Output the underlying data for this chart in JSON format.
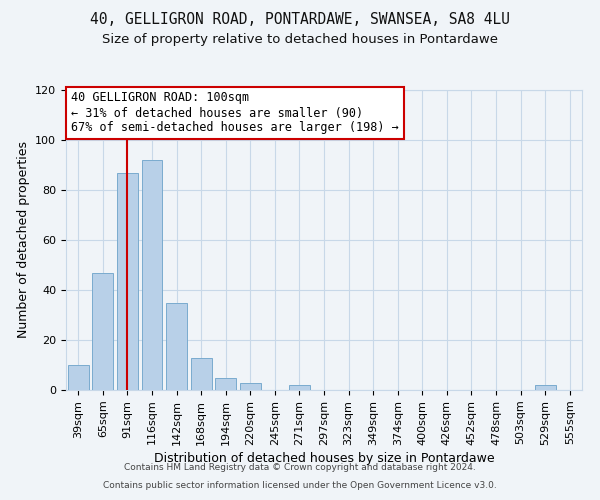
{
  "title1": "40, GELLIGRON ROAD, PONTARDAWE, SWANSEA, SA8 4LU",
  "title2": "Size of property relative to detached houses in Pontardawe",
  "xlabel": "Distribution of detached houses by size in Pontardawe",
  "ylabel": "Number of detached properties",
  "bar_labels": [
    "39sqm",
    "65sqm",
    "91sqm",
    "116sqm",
    "142sqm",
    "168sqm",
    "194sqm",
    "220sqm",
    "245sqm",
    "271sqm",
    "297sqm",
    "323sqm",
    "349sqm",
    "374sqm",
    "400sqm",
    "426sqm",
    "452sqm",
    "478sqm",
    "503sqm",
    "529sqm",
    "555sqm"
  ],
  "bar_heights": [
    10,
    47,
    87,
    92,
    35,
    13,
    5,
    3,
    0,
    2,
    0,
    0,
    0,
    0,
    0,
    0,
    0,
    0,
    0,
    2,
    0
  ],
  "bar_color": "#b8d0e8",
  "bar_edgecolor": "#7aabcf",
  "ylim": [
    0,
    120
  ],
  "yticks": [
    0,
    20,
    40,
    60,
    80,
    100,
    120
  ],
  "vline_color": "#cc0000",
  "vline_xindex": 2.0,
  "annotation_title": "40 GELLIGRON ROAD: 100sqm",
  "annotation_line1": "← 31% of detached houses are smaller (90)",
  "annotation_line2": "67% of semi-detached houses are larger (198) →",
  "annotation_box_color": "#ffffff",
  "annotation_box_edgecolor": "#cc0000",
  "footer1": "Contains HM Land Registry data © Crown copyright and database right 2024.",
  "footer2": "Contains public sector information licensed under the Open Government Licence v3.0.",
  "bg_color": "#f0f4f8",
  "grid_color": "#c8d8e8",
  "title1_fontsize": 10.5,
  "title2_fontsize": 9.5,
  "xlabel_fontsize": 9,
  "ylabel_fontsize": 9,
  "tick_fontsize": 8,
  "footer_fontsize": 6.5,
  "bar_width": 0.85
}
